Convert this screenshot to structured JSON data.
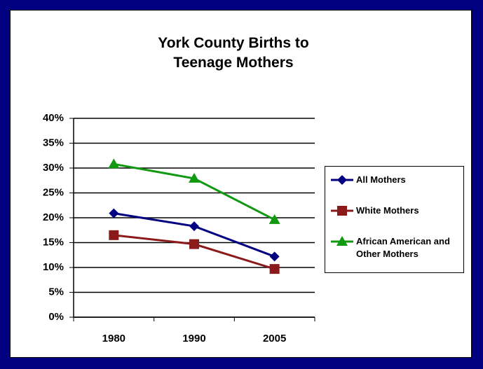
{
  "chart_data": {
    "type": "line",
    "title": "York County Births to Teenage Mothers",
    "categories": [
      "1980",
      "1990",
      "2005"
    ],
    "series": [
      {
        "name": "All Mothers",
        "color": "#000080",
        "marker": "diamond",
        "values": [
          20.9,
          18.3,
          12.2
        ]
      },
      {
        "name": "White Mothers",
        "color": "#8b1a1a",
        "marker": "square",
        "values": [
          16.5,
          14.7,
          9.7
        ]
      },
      {
        "name": "African American and Other Mothers",
        "color": "#119911",
        "marker": "triangle",
        "values": [
          30.8,
          27.9,
          19.6
        ]
      }
    ],
    "ylim": [
      0,
      40
    ],
    "yticks": [
      {
        "value": 0,
        "label": "0%"
      },
      {
        "value": 5,
        "label": "5%"
      },
      {
        "value": 10,
        "label": "10%"
      },
      {
        "value": 15,
        "label": "15%"
      },
      {
        "value": 20,
        "label": "20%"
      },
      {
        "value": 25,
        "label": "25%"
      },
      {
        "value": 30,
        "label": "30%"
      },
      {
        "value": 35,
        "label": "35%"
      },
      {
        "value": 40,
        "label": "40%"
      }
    ],
    "grid": true,
    "legend": "right"
  }
}
